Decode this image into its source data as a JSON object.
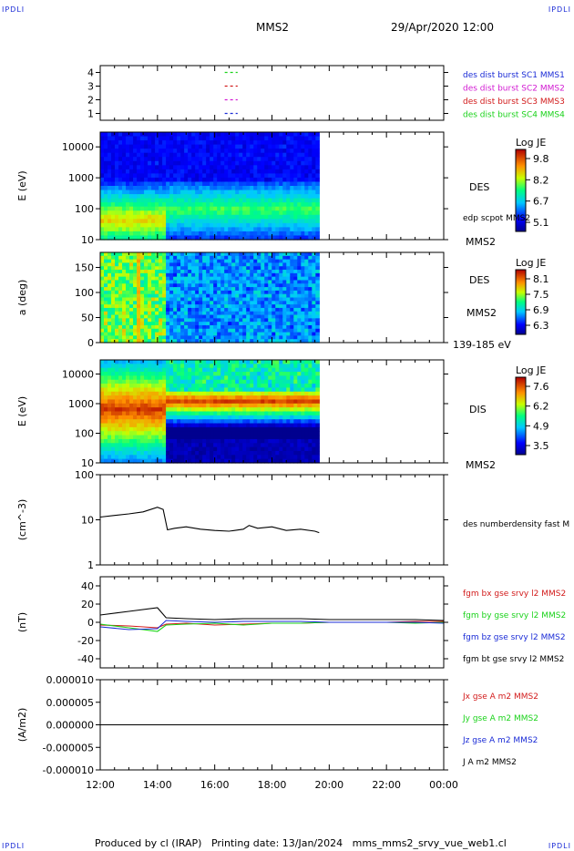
{
  "page": {
    "corner_left_top": "IPDLI",
    "corner_right_top": "IPDLI",
    "corner_left_bottom": "IPDLI",
    "corner_right_bottom": "IPDLI",
    "title": "MMS2",
    "datetime": "29/Apr/2020 12:00",
    "footer": "Produced by cl (IRAP)   Printing date: 13/Jan/2024   mms_mms2_srvy_vue_web1.cl"
  },
  "colors": {
    "blue": "#1a2bd6",
    "magenta": "#d21ad2",
    "red": "#d21a1a",
    "green": "#1ad21a",
    "black": "#000000"
  },
  "chart_data": [
    {
      "type": "line",
      "panel": "burst-availability",
      "y_ticks": [
        "1",
        "2",
        "3",
        "4"
      ],
      "ylim": [
        0.5,
        4.5
      ],
      "legend": [
        {
          "label": "des dist burst SC1 MMS1",
          "color": "#1a2bd6"
        },
        {
          "label": "des dist burst SC2 MMS2",
          "color": "#d21ad2"
        },
        {
          "label": "des dist burst SC3 MMS3",
          "color": "#d21a1a"
        },
        {
          "label": "des dist burst SC4 MMS4",
          "color": "#1ad21a"
        }
      ],
      "segments": [
        {
          "y": 4,
          "x": [
            16.35,
            16.8
          ],
          "color": "#1ad21a"
        },
        {
          "y": 3,
          "x": [
            16.35,
            16.8
          ],
          "color": "#d21a1a"
        },
        {
          "y": 2,
          "x": [
            16.35,
            16.8
          ],
          "color": "#d21ad2"
        },
        {
          "y": 1,
          "x": [
            16.35,
            16.8
          ],
          "color": "#1a2bd6"
        }
      ]
    },
    {
      "type": "heatmap",
      "panel": "des-energy",
      "ylabel": "E (eV)",
      "scale": "log",
      "ylim": [
        10,
        30000
      ],
      "y_ticks": [
        "10",
        "100",
        "1000",
        "10000"
      ],
      "side_label": "DES",
      "side_sub": "edp scpot MMS2",
      "bottom_label": "MMS2",
      "colorbar": {
        "title": "Log JE",
        "ticks": [
          "9.8",
          "8.2",
          "6.7",
          "5.1"
        ]
      },
      "data_end_hour": 19.65
    },
    {
      "type": "heatmap",
      "panel": "des-pitch",
      "ylabel": "a (deg)",
      "ylim": [
        0,
        180
      ],
      "y_ticks": [
        "0",
        "50",
        "100",
        "150"
      ],
      "side_label": "DES",
      "side_sub": "MMS2",
      "bottom_label": "139-185 eV",
      "colorbar": {
        "title": "Log JE",
        "ticks": [
          "8.1",
          "7.5",
          "6.9",
          "6.3"
        ]
      },
      "data_end_hour": 19.65
    },
    {
      "type": "heatmap",
      "panel": "dis-energy",
      "ylabel": "E (eV)",
      "scale": "log",
      "ylim": [
        10,
        30000
      ],
      "y_ticks": [
        "10",
        "100",
        "1000",
        "10000"
      ],
      "side_label": "DIS",
      "bottom_label": "MMS2",
      "colorbar": {
        "title": "Log JE",
        "ticks": [
          "7.6",
          "6.2",
          "4.9",
          "3.5"
        ]
      },
      "data_end_hour": 19.65
    },
    {
      "type": "line",
      "panel": "density",
      "ylabel": "(cm^-3)",
      "scale": "log",
      "ylim": [
        1,
        100
      ],
      "y_ticks": [
        "1",
        "10",
        "100"
      ],
      "legend": [
        {
          "label": "des numberdensity fast M",
          "color": "#000000"
        }
      ],
      "series": [
        {
          "name": "des numberdensity fast M",
          "color": "#000000",
          "x": [
            12.0,
            12.5,
            13.0,
            13.5,
            14.0,
            14.2,
            14.35,
            14.6,
            15.0,
            15.5,
            16.0,
            16.5,
            17.0,
            17.2,
            17.5,
            18.0,
            18.5,
            19.0,
            19.5,
            19.65
          ],
          "y": [
            11.5,
            12.5,
            13.5,
            15.0,
            19.0,
            17.0,
            6.0,
            6.5,
            7.0,
            6.2,
            5.8,
            5.6,
            6.2,
            7.5,
            6.5,
            7.0,
            5.8,
            6.2,
            5.6,
            5.2
          ]
        }
      ]
    },
    {
      "type": "line",
      "panel": "magnetic-field",
      "ylabel": "(nT)",
      "ylim": [
        -50,
        50
      ],
      "y_ticks": [
        "-40",
        "-20",
        "0",
        "20",
        "40"
      ],
      "legend": [
        {
          "label": "fgm bx gse srvy l2 MMS2",
          "color": "#d21a1a"
        },
        {
          "label": "fgm by gse srvy l2 MMS2",
          "color": "#1ad21a"
        },
        {
          "label": "fgm bz gse srvy l2 MMS2",
          "color": "#1a2bd6"
        },
        {
          "label": "fgm bt gse srvy l2 MMS2",
          "color": "#000000"
        }
      ],
      "x": [
        12.0,
        13.0,
        14.0,
        14.3,
        15.0,
        16.0,
        17.0,
        18.0,
        19.0,
        20.0,
        21.0,
        22.0,
        23.0,
        24.0
      ],
      "series": [
        {
          "name": "fgm bx gse srvy l2 MMS2",
          "color": "#d21a1a",
          "y": [
            -3,
            -4,
            -6,
            -2,
            -1,
            -3,
            -2,
            -1,
            -1,
            0,
            0,
            0,
            1,
            1
          ]
        },
        {
          "name": "fgm by gse srvy l2 MMS2",
          "color": "#1ad21a",
          "y": [
            -2,
            -6,
            -10,
            -3,
            -2,
            -1,
            -3,
            -1,
            -1,
            0,
            0,
            0,
            -1,
            0
          ]
        },
        {
          "name": "fgm bz gse srvy l2 MMS2",
          "color": "#1a2bd6",
          "y": [
            -5,
            -8,
            -7,
            2,
            1,
            0,
            1,
            1,
            1,
            0,
            0,
            0,
            0,
            -1
          ]
        },
        {
          "name": "fgm bt gse srvy l2 MMS2",
          "color": "#000000",
          "y": [
            8,
            12,
            16,
            5,
            4,
            3,
            4,
            4,
            4,
            3,
            3,
            3,
            3,
            2
          ]
        }
      ]
    },
    {
      "type": "line",
      "panel": "current-density",
      "ylabel": "(A/m2)",
      "ylim": [
        -1e-05,
        1e-05
      ],
      "y_ticks": [
        "-0.000010",
        "-0.000005",
        "0.000000",
        "0.000005",
        "0.000010"
      ],
      "x_ticks": [
        "12:00",
        "14:00",
        "16:00",
        "18:00",
        "20:00",
        "22:00",
        "00:00"
      ],
      "xlim": [
        12,
        24
      ],
      "legend": [
        {
          "label": "Jx gse A m2 MMS2",
          "color": "#d21a1a"
        },
        {
          "label": "Jy gse A m2 MMS2",
          "color": "#1ad21a"
        },
        {
          "label": "Jz gse A m2 MMS2",
          "color": "#1a2bd6"
        },
        {
          "label": "J A m2 MMS2",
          "color": "#000000"
        }
      ],
      "x": [
        12.0,
        14.0,
        14.5,
        16.0,
        18.0,
        20.0,
        22.0,
        24.0
      ],
      "series": [
        {
          "name": "J A m2 MMS2",
          "color": "#000000",
          "y": [
            0,
            0,
            0,
            0,
            0,
            0,
            0,
            0
          ]
        }
      ]
    }
  ]
}
